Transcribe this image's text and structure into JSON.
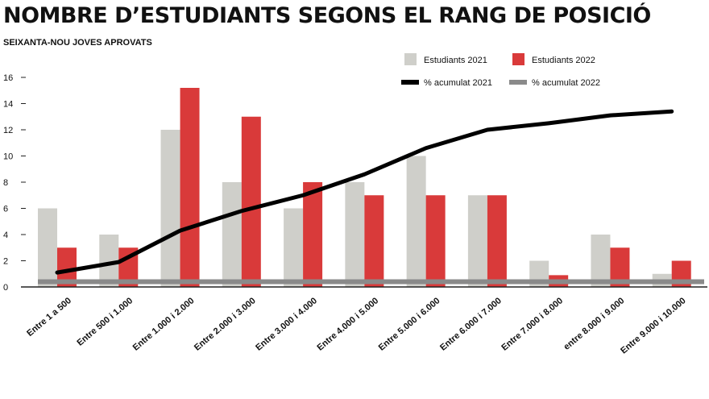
{
  "header": {
    "title": "NOMBRE D’ESTUDIANTS SEGONS EL RANG DE POSICIÓ",
    "subtitle": "SEIXANTA-NOU JOVES APROVATS"
  },
  "chart_data": {
    "type": "bar",
    "title": "NOMBRE D’ESTUDIANTS SEGONS EL RANG DE POSICIÓ",
    "subtitle": "SEIXANTA-NOU JOVES APROVATS",
    "categories": [
      "Entre 1 a 500",
      "Entre 500 i 1.000",
      "Entre 1.000 i 2.000",
      "Entre 2.000 i 3.000",
      "Entre 3.000 i 4.000",
      "Entre 4.000 i 5.000",
      "Entre 5.000 i 6.000",
      "Entre 6.000 i 7.000",
      "Entre 7.000 i 8.000",
      "entre 8.000 i 9.000",
      "Entre 9.000 i 10.000"
    ],
    "series": [
      {
        "name": "Estudiants 2021",
        "kind": "bar",
        "color": "#cfcfca",
        "values": [
          6,
          4,
          12,
          8,
          6,
          8,
          10,
          7,
          2,
          4,
          1
        ]
      },
      {
        "name": "Estudiants 2022",
        "kind": "bar",
        "color": "#d93a3a",
        "values": [
          3,
          3,
          15.2,
          13,
          8,
          7,
          7,
          7,
          0.9,
          3,
          2
        ]
      },
      {
        "name": "% acumulat 2021",
        "kind": "line",
        "color": "#000000",
        "values": [
          1.1,
          1.9,
          4.3,
          5.8,
          7,
          8.6,
          10.6,
          12,
          12.5,
          13.1,
          13.4
        ]
      },
      {
        "name": "% acumulat 2022",
        "kind": "line",
        "color": "#8a8a8a",
        "values": [
          0.4,
          0.4,
          0.4,
          0.4,
          0.4,
          0.4,
          0.4,
          0.4,
          0.4,
          0.4,
          0.4
        ]
      }
    ],
    "yticks": [
      0,
      2,
      4,
      6,
      8,
      10,
      12,
      14,
      16
    ],
    "ylim": [
      0,
      16
    ],
    "grid": false,
    "legend_position": "top-right"
  }
}
